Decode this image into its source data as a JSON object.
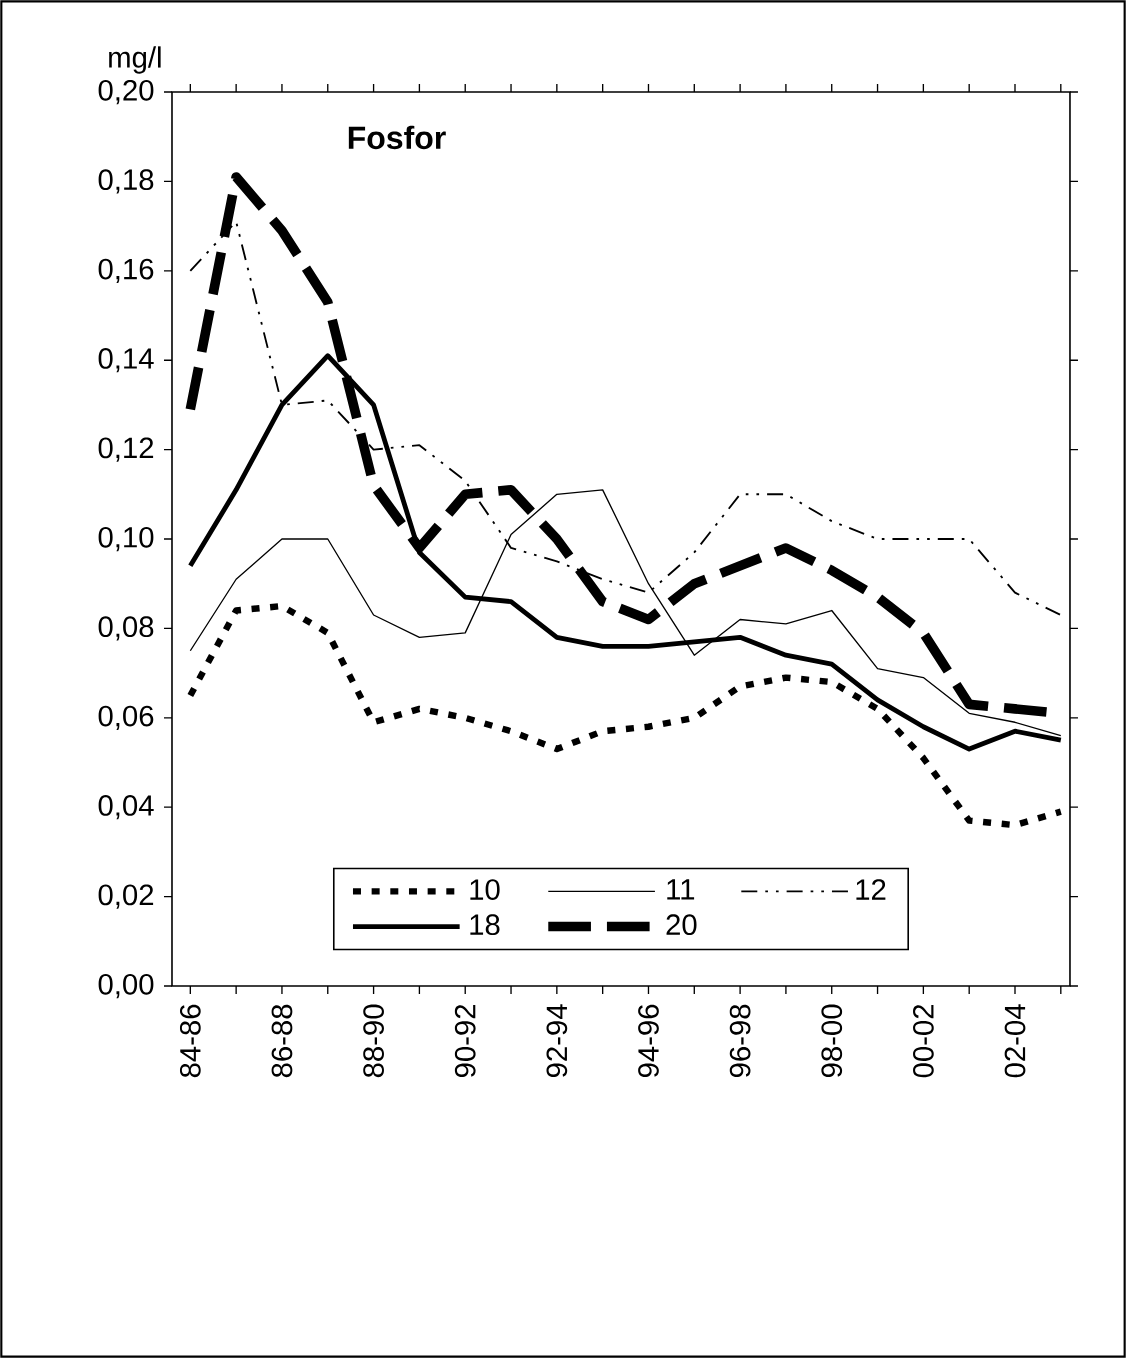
{
  "chart_data": {
    "type": "line",
    "title": "Fosfor",
    "ylabel": "mg/l",
    "categories": [
      "84-86",
      null,
      "86-88",
      null,
      "88-90",
      null,
      "90-92",
      null,
      "92-94",
      null,
      "94-96",
      null,
      "96-98",
      null,
      "98-00",
      null,
      "00-02",
      null,
      "02-04",
      null
    ],
    "series": [
      {
        "name": "10",
        "color": "#000000",
        "line_style": "dotted",
        "values": [
          0.065,
          0.084,
          0.085,
          0.079,
          0.059,
          0.062,
          0.06,
          0.057,
          0.053,
          0.057,
          0.058,
          0.06,
          0.067,
          0.069,
          0.068,
          0.062,
          0.051,
          0.037,
          0.036,
          0.039
        ]
      },
      {
        "name": "11",
        "color": "#000000",
        "line_style": "solid",
        "values": [
          0.075,
          0.091,
          0.1,
          0.1,
          0.083,
          0.078,
          0.079,
          0.101,
          0.11,
          0.111,
          0.09,
          0.074,
          0.082,
          0.081,
          0.084,
          0.071,
          0.069,
          0.061,
          0.059,
          0.056
        ]
      },
      {
        "name": "12",
        "color": "#000000",
        "line_style": "dashed",
        "values": [
          0.16,
          0.171,
          0.13,
          0.131,
          0.12,
          0.121,
          0.113,
          0.098,
          0.095,
          0.091,
          0.088,
          0.097,
          0.11,
          0.11,
          0.104,
          0.1,
          0.1,
          0.1,
          0.088,
          0.083
        ]
      },
      {
        "name": "18",
        "color": "#000000",
        "line_style": "solid",
        "values": [
          0.094,
          0.111,
          0.13,
          0.141,
          0.13,
          0.097,
          0.087,
          0.086,
          0.078,
          0.076,
          0.076,
          0.077,
          0.078,
          0.074,
          0.072,
          0.064,
          0.058,
          0.053,
          0.057,
          0.055
        ]
      },
      {
        "name": "20",
        "color": "#000000",
        "line_style": "dashed",
        "values": [
          0.129,
          0.181,
          0.169,
          0.153,
          0.112,
          0.098,
          0.11,
          0.111,
          0.1,
          0.086,
          0.082,
          0.09,
          0.094,
          0.098,
          0.093,
          0.087,
          0.079,
          0.063,
          0.062,
          0.061
        ]
      }
    ],
    "ylim": [
      0,
      0.2
    ],
    "yticks": [
      {
        "value": 0,
        "label": "0,00"
      },
      {
        "value": 0.02,
        "label": "0,02"
      },
      {
        "value": 0.04,
        "label": "0,04"
      },
      {
        "value": 0.06,
        "label": "0,06"
      },
      {
        "value": 0.08,
        "label": "0,08"
      },
      {
        "value": 0.1,
        "label": "0,10"
      },
      {
        "value": 0.12,
        "label": "0,12"
      },
      {
        "value": 0.14,
        "label": "0,14"
      },
      {
        "value": 0.16,
        "label": "0,16"
      },
      {
        "value": 0.18,
        "label": "0,18"
      },
      {
        "value": 0.2,
        "label": "0,20"
      }
    ],
    "grid": false,
    "legend": "bottom",
    "marker": "none"
  }
}
